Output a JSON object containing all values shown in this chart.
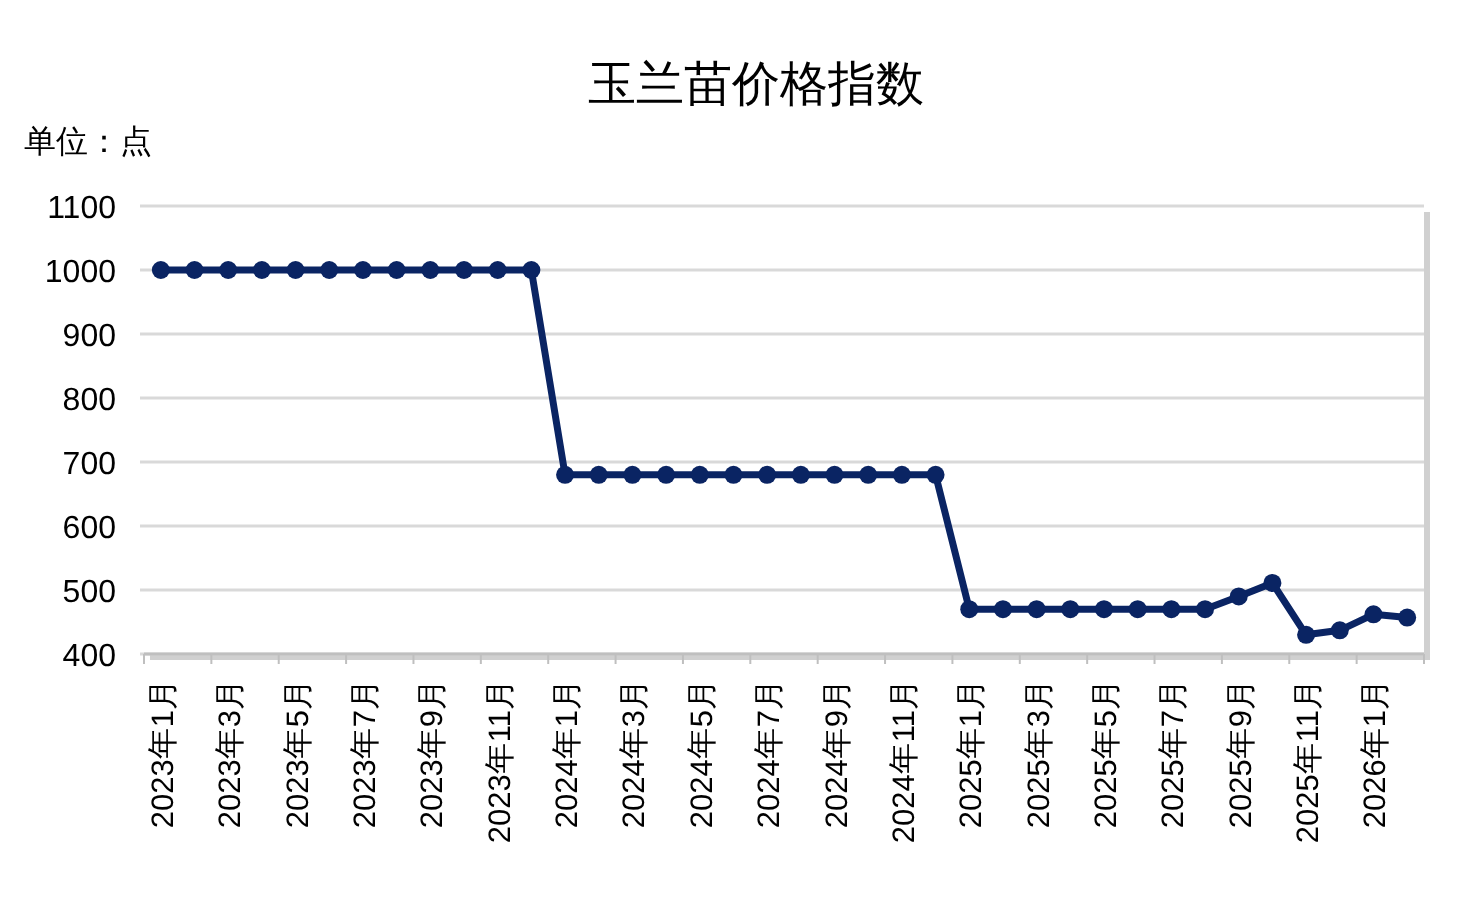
{
  "chart_data": {
    "type": "line",
    "title": "玉兰苗价格指数",
    "ylabel": "单位：点",
    "categories": [
      "2023年1月",
      null,
      "2023年3月",
      null,
      "2023年5月",
      null,
      "2023年7月",
      null,
      "2023年9月",
      null,
      "2023年11月",
      null,
      "2024年1月",
      null,
      "2024年3月",
      null,
      "2024年5月",
      null,
      "2024年7月",
      null,
      "2024年9月",
      null,
      "2024年11月",
      null,
      "2025年1月",
      null,
      "2025年3月",
      null,
      "2025年5月",
      null,
      "2025年7月",
      null,
      "2025年9月",
      null,
      "2025年11月",
      null,
      "2026年1月",
      null
    ],
    "series": [
      {
        "color": "#0a2463",
        "values": [
          1000,
          1000,
          1000,
          1000,
          1000,
          1000,
          1000,
          1000,
          1000,
          1000,
          1000,
          1000,
          680,
          680,
          680,
          680,
          680,
          680,
          680,
          680,
          680,
          680,
          680,
          680,
          470,
          470,
          470,
          470,
          470,
          470,
          470,
          470,
          490,
          511,
          430,
          437,
          462,
          457
        ]
      }
    ],
    "ylim": [
      400,
      1100
    ],
    "yticks": [
      400,
      500,
      600,
      700,
      800,
      900,
      1000,
      1100
    ],
    "grid": "y",
    "marker": "circle",
    "line_style": "solid"
  }
}
